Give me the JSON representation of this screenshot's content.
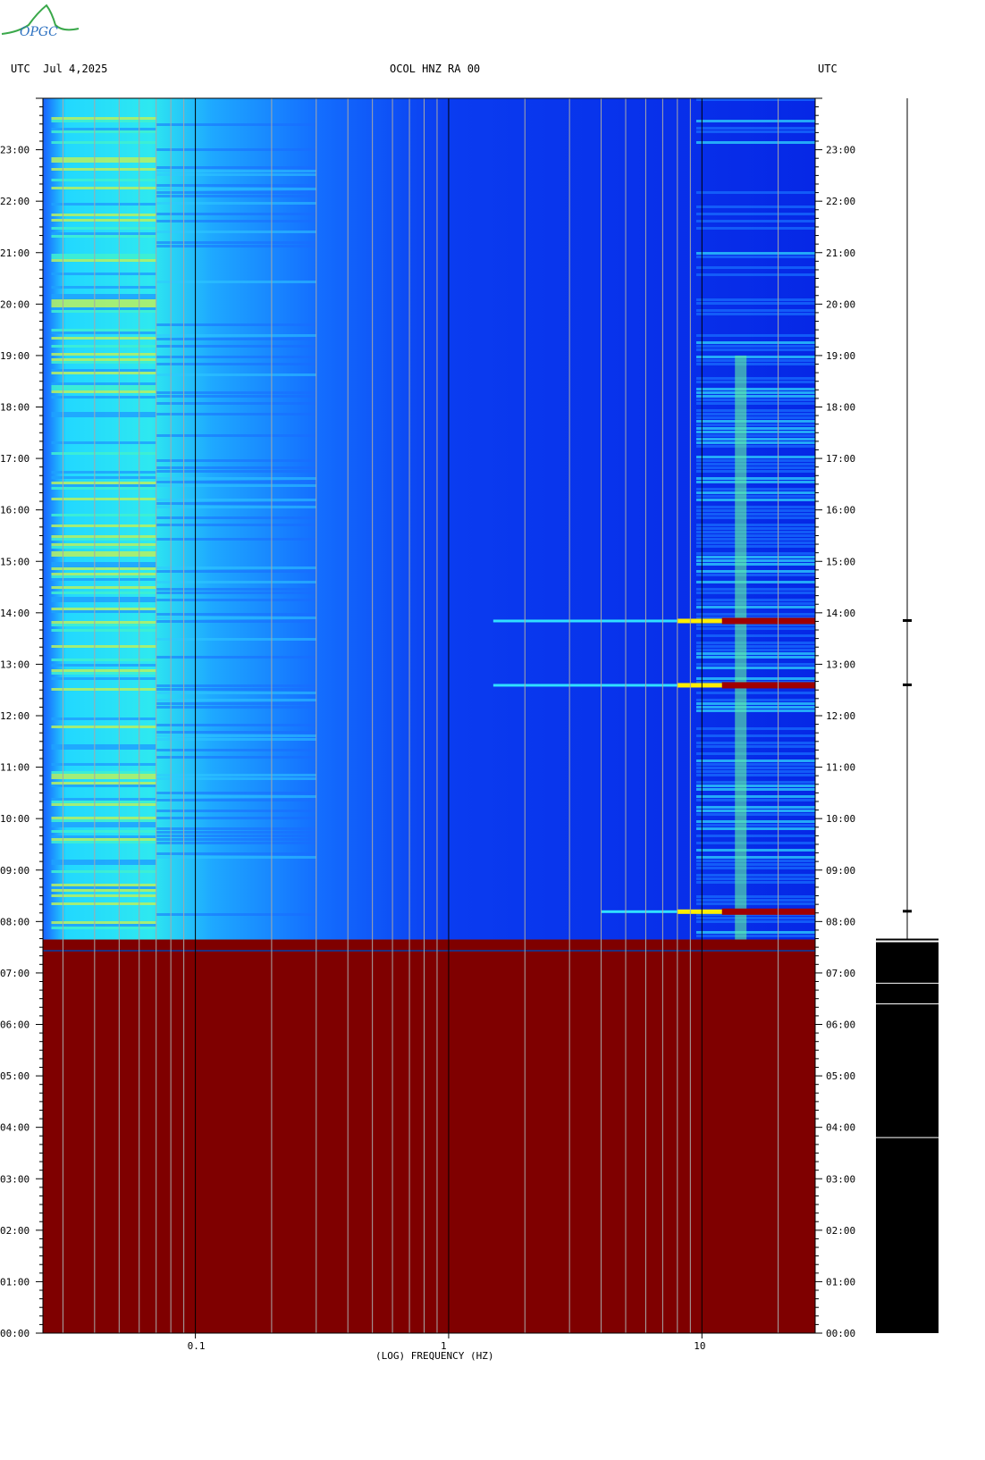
{
  "header": {
    "left": "UTC  Jul 4,2025",
    "center": "OCOL HNZ RA 00",
    "right": "UTC"
  },
  "logo": {
    "text": "OPGC",
    "color": "#3aa84a"
  },
  "colors": {
    "no_data": "#7f0000",
    "low": "#0a3cff",
    "mid": "#22e6ff",
    "high": "#ffee00",
    "peak": "#a00000",
    "trace_bg": "#000000"
  },
  "chart_data": {
    "type": "heatmap",
    "title": "OCOL HNZ RA 00",
    "xlabel": "(LOG) FREQUENCY (HZ)",
    "ylabel": "UTC",
    "x_scale": "log",
    "xlim": [
      0.025,
      28
    ],
    "ylim_hours": [
      0,
      24
    ],
    "x_tick_labels": [
      "0.1",
      "1",
      "10"
    ],
    "x_ticks": [
      0.1,
      1,
      10
    ],
    "y_tick_labels": [
      "00:00",
      "01:00",
      "02:00",
      "03:00",
      "04:00",
      "05:00",
      "06:00",
      "07:00",
      "08:00",
      "09:00",
      "10:00",
      "11:00",
      "12:00",
      "13:00",
      "14:00",
      "15:00",
      "16:00",
      "17:00",
      "18:00",
      "19:00",
      "20:00",
      "21:00",
      "22:00",
      "23:00"
    ],
    "data_start_hour": 7.65,
    "no_data_range_hours": [
      0,
      7.65
    ],
    "strong_events_hours": [
      13.85,
      12.6,
      8.2
    ],
    "grid": true
  }
}
